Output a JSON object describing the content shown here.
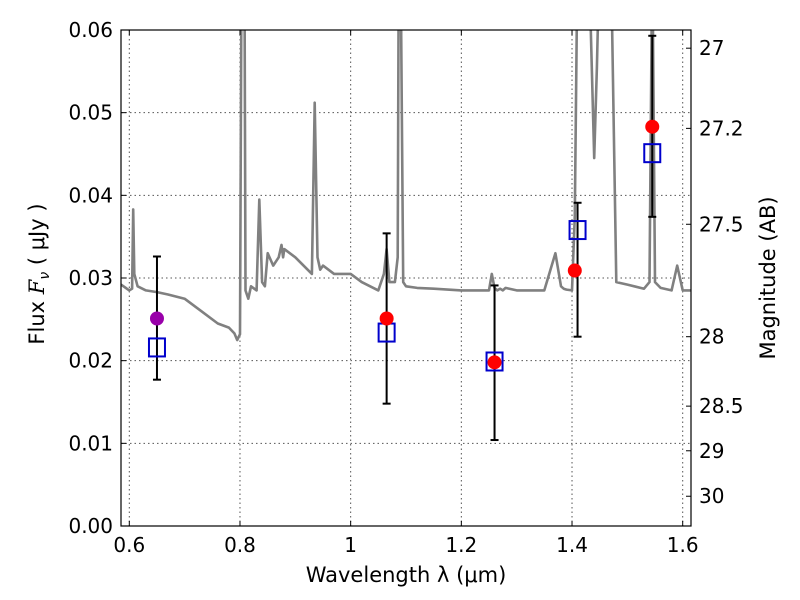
{
  "chart_data": {
    "type": "scatter",
    "xlabel": "Wavelength  λ (μm)",
    "ylabel": "Flux  F_ν  ( μJy )",
    "ylabel_parts": {
      "prefix": "Flux  ",
      "symbol": "F",
      "subscript": "ν",
      "suffix": "  ( μJy )"
    },
    "ylabel_right": "Magnitude (AB)",
    "xlim": [
      0.585,
      1.615
    ],
    "ylim": [
      0.0,
      0.06
    ],
    "x_ticks": [
      "0.6",
      "0.8",
      "1",
      "1.2",
      "1.4",
      "1.6"
    ],
    "x_tick_values": [
      0.6,
      0.8,
      1.0,
      1.2,
      1.4,
      1.6
    ],
    "y_ticks": [
      "0.00",
      "0.01",
      "0.02",
      "0.03",
      "0.04",
      "0.05",
      "0.06"
    ],
    "y_tick_values": [
      0.0,
      0.01,
      0.02,
      0.03,
      0.04,
      0.05,
      0.06
    ],
    "right_ticks": [
      {
        "label": "27",
        "flux": 0.0578
      },
      {
        "label": "27.2",
        "flux": 0.0481
      },
      {
        "label": "27.5",
        "flux": 0.0365
      },
      {
        "label": "28",
        "flux": 0.0229
      },
      {
        "label": "28.5",
        "flux": 0.0145
      },
      {
        "label": "29",
        "flux": 0.0091
      },
      {
        "label": "30",
        "flux": 0.0036
      }
    ],
    "grid": true,
    "colors": {
      "spectrum": "#808080",
      "model_point": "#ff0000",
      "first_model_point": "#9900aa",
      "observed": "#0000cc",
      "errorbar": "#000000"
    },
    "spectrum": {
      "name": "",
      "x": [
        0.585,
        0.6,
        0.605,
        0.607,
        0.609,
        0.615,
        0.63,
        0.65,
        0.67,
        0.7,
        0.73,
        0.76,
        0.78,
        0.79,
        0.795,
        0.8,
        0.803,
        0.806,
        0.808,
        0.81,
        0.815,
        0.82,
        0.83,
        0.835,
        0.84,
        0.845,
        0.85,
        0.86,
        0.87,
        0.875,
        0.878,
        0.88,
        0.9,
        0.93,
        0.935,
        0.94,
        0.945,
        0.95,
        0.97,
        1.0,
        1.02,
        1.05,
        1.06,
        1.065,
        1.07,
        1.08,
        1.085,
        1.087,
        1.09,
        1.095,
        1.1,
        1.12,
        1.15,
        1.2,
        1.25,
        1.255,
        1.26,
        1.265,
        1.27,
        1.275,
        1.28,
        1.3,
        1.35,
        1.37,
        1.38,
        1.385,
        1.39,
        1.4,
        1.405,
        1.41,
        1.415,
        1.42,
        1.43,
        1.44,
        1.445,
        1.45,
        1.455,
        1.47,
        1.48,
        1.5,
        1.53,
        1.54,
        1.545,
        1.55,
        1.56,
        1.58,
        1.59,
        1.6,
        1.615
      ],
      "y": [
        0.0292,
        0.0285,
        0.0287,
        0.0383,
        0.0305,
        0.029,
        0.0285,
        0.0283,
        0.028,
        0.0275,
        0.026,
        0.0245,
        0.024,
        0.0233,
        0.0225,
        0.0232,
        0.07,
        0.07,
        0.07,
        0.0285,
        0.0275,
        0.029,
        0.0285,
        0.0395,
        0.0295,
        0.029,
        0.033,
        0.0315,
        0.0325,
        0.034,
        0.0325,
        0.0335,
        0.0325,
        0.0305,
        0.0512,
        0.0325,
        0.031,
        0.0315,
        0.0305,
        0.0305,
        0.0295,
        0.0285,
        0.0305,
        0.0335,
        0.0295,
        0.0295,
        0.0325,
        0.07,
        0.07,
        0.0295,
        0.029,
        0.0288,
        0.0287,
        0.0285,
        0.0285,
        0.0305,
        0.0288,
        0.0285,
        0.0287,
        0.0285,
        0.0288,
        0.0285,
        0.0285,
        0.033,
        0.029,
        0.0287,
        0.0286,
        0.0285,
        0.0375,
        0.07,
        0.07,
        0.07,
        0.07,
        0.0445,
        0.0555,
        0.07,
        0.07,
        0.07,
        0.0295,
        0.0292,
        0.0287,
        0.0295,
        0.07,
        0.0295,
        0.0288,
        0.0285,
        0.0315,
        0.0285,
        0.0285
      ],
      "y_note": "values 0.07 mark spikes that extend above the plotted range"
    },
    "model_points": {
      "name": "",
      "x": [
        0.65,
        1.065,
        1.26,
        1.405,
        1.545
      ],
      "y": [
        0.0251,
        0.0251,
        0.0198,
        0.0309,
        0.0483
      ]
    },
    "observed": {
      "name": "",
      "x": [
        0.65,
        1.065,
        1.26,
        1.41,
        1.545
      ],
      "y": [
        0.0216,
        0.0234,
        0.0199,
        0.0358,
        0.0451
      ],
      "err_low": [
        0.0177,
        0.0148,
        0.0104,
        0.0229,
        0.0374
      ],
      "err_high": [
        0.0326,
        0.0354,
        0.0291,
        0.0391,
        0.0593
      ]
    }
  }
}
